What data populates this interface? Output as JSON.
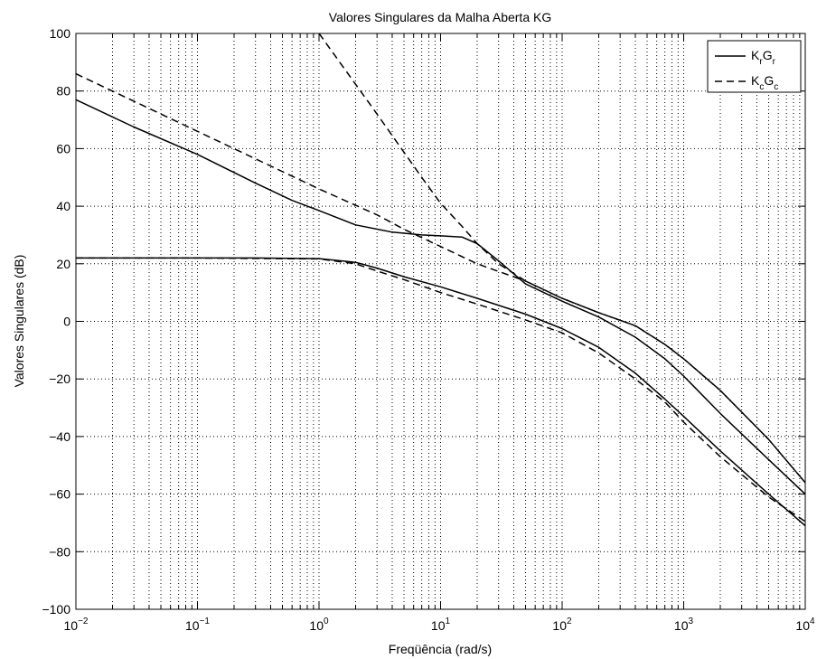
{
  "chart_data": {
    "type": "line",
    "title": "Valores Singulares da Malha Aberta KG",
    "xlabel": "Freqüência (rad/s)",
    "ylabel": "Valores Singulares (dB)",
    "xscale": "log",
    "xlim": [
      0.01,
      10000
    ],
    "ylim": [
      -100,
      100
    ],
    "grid": true,
    "legend_position": "top-right",
    "x_ticks": [
      {
        "base": "10",
        "exp": "−2"
      },
      {
        "base": "10",
        "exp": "−1"
      },
      {
        "base": "10",
        "exp": "0"
      },
      {
        "base": "10",
        "exp": "1"
      },
      {
        "base": "10",
        "exp": "2"
      },
      {
        "base": "10",
        "exp": "3"
      },
      {
        "base": "10",
        "exp": "4"
      }
    ],
    "y_ticks": [
      "100",
      "80",
      "60",
      "40",
      "20",
      "0",
      "−20",
      "−40",
      "−60",
      "−80",
      "−100"
    ],
    "legend": [
      {
        "main1": "K",
        "sub1": "r",
        "main2": "G",
        "sub2": "r",
        "style": "solid"
      },
      {
        "main1": "K",
        "sub1": "c",
        "main2": "G",
        "sub2": "c",
        "style": "dashed"
      }
    ],
    "series": [
      {
        "group": "KrGr",
        "style": "solid",
        "points": [
          [
            0.01,
            77
          ],
          [
            0.03,
            67.5
          ],
          [
            0.1,
            58
          ],
          [
            0.3,
            48
          ],
          [
            0.6,
            42
          ],
          [
            1,
            38.5
          ],
          [
            2,
            33.5
          ],
          [
            4,
            31
          ],
          [
            7,
            30
          ],
          [
            10,
            29.7
          ],
          [
            15,
            29.3
          ],
          [
            20,
            27
          ],
          [
            30,
            21
          ],
          [
            50,
            13
          ],
          [
            100,
            7
          ],
          [
            200,
            1.5
          ],
          [
            400,
            -5.5
          ],
          [
            700,
            -13
          ],
          [
            1000,
            -19
          ],
          [
            2000,
            -32
          ],
          [
            5000,
            -48
          ],
          [
            10000,
            -60
          ]
        ]
      },
      {
        "group": "KrGr",
        "style": "solid",
        "points": [
          [
            0.01,
            22
          ],
          [
            0.1,
            22
          ],
          [
            0.3,
            22
          ],
          [
            1,
            21.8
          ],
          [
            2,
            20.5
          ],
          [
            3,
            18.5
          ],
          [
            5,
            15.5
          ],
          [
            10,
            12
          ],
          [
            20,
            8
          ],
          [
            50,
            2.5
          ],
          [
            100,
            -2.5
          ],
          [
            200,
            -9
          ],
          [
            400,
            -18
          ],
          [
            700,
            -27
          ],
          [
            1000,
            -33
          ],
          [
            2000,
            -45
          ],
          [
            5000,
            -60
          ],
          [
            10000,
            -71
          ]
        ]
      },
      {
        "group": "KcGc",
        "style": "dashed",
        "points": [
          [
            0.01,
            86
          ],
          [
            0.1,
            66
          ],
          [
            1,
            46
          ],
          [
            3,
            37
          ],
          [
            5,
            32
          ],
          [
            10,
            26
          ],
          [
            20,
            20
          ],
          [
            50,
            14
          ],
          [
            100,
            8
          ],
          [
            200,
            3
          ],
          [
            400,
            -1.5
          ],
          [
            700,
            -8
          ],
          [
            1000,
            -13
          ],
          [
            2000,
            -24
          ],
          [
            5000,
            -41
          ],
          [
            10000,
            -56
          ]
        ]
      },
      {
        "group": "KcGc",
        "style": "dashed",
        "points": [
          [
            1,
            100
          ],
          [
            3,
            72
          ],
          [
            7,
            50
          ],
          [
            10,
            41
          ],
          [
            15,
            33
          ],
          [
            20,
            27
          ],
          [
            30,
            20
          ],
          [
            50,
            14
          ],
          [
            100,
            8
          ],
          [
            200,
            3
          ],
          [
            400,
            -1.5
          ],
          [
            700,
            -8
          ],
          [
            1000,
            -13
          ],
          [
            2000,
            -24
          ],
          [
            5000,
            -41
          ],
          [
            10000,
            -56
          ]
        ]
      },
      {
        "group": "KcGc",
        "style": "dashed",
        "points": [
          [
            0.01,
            22
          ],
          [
            0.1,
            22
          ],
          [
            1,
            21.7
          ],
          [
            2,
            20
          ],
          [
            3,
            17.5
          ],
          [
            5,
            14.5
          ],
          [
            10,
            10
          ],
          [
            20,
            6
          ],
          [
            50,
            0.5
          ],
          [
            100,
            -4
          ],
          [
            200,
            -11
          ],
          [
            400,
            -20
          ],
          [
            700,
            -28
          ],
          [
            1000,
            -35
          ],
          [
            2000,
            -47
          ],
          [
            5000,
            -61
          ],
          [
            10000,
            -69.5
          ]
        ]
      }
    ]
  }
}
